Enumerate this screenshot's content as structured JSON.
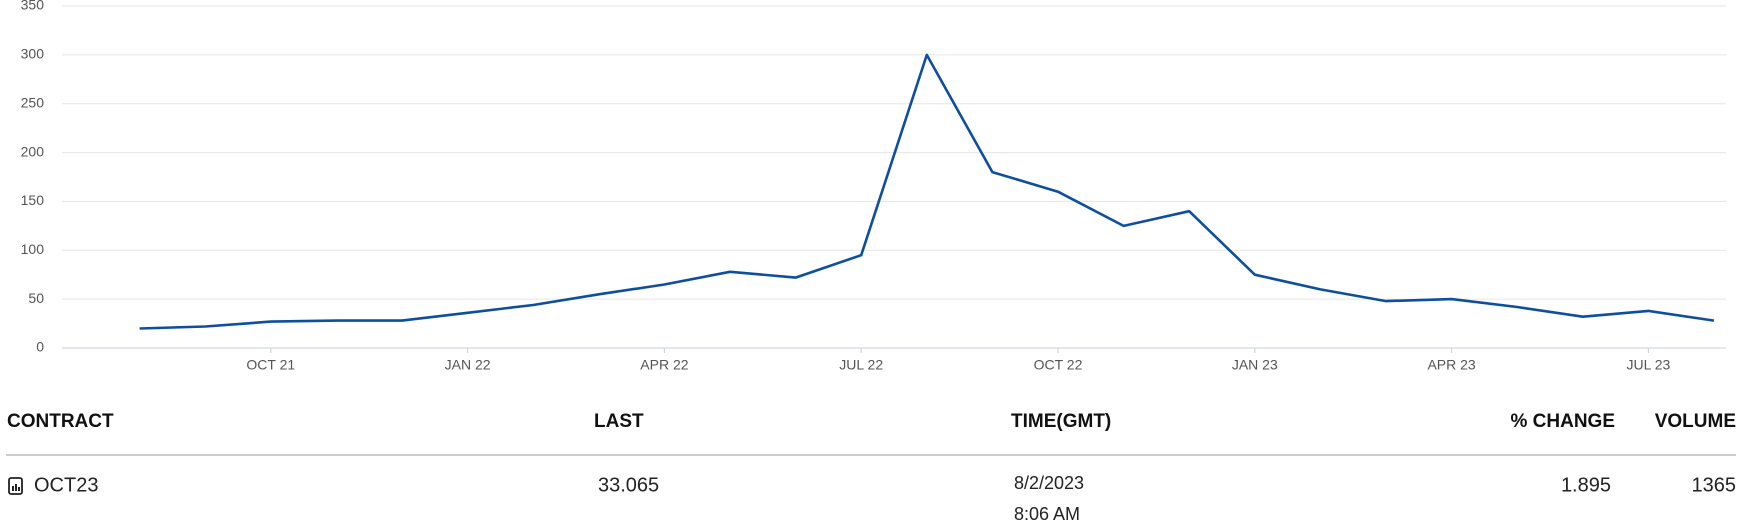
{
  "chart_data": {
    "type": "line",
    "x": [
      "2021-08",
      "2021-09",
      "2021-10",
      "2021-11",
      "2021-12",
      "2022-01",
      "2022-02",
      "2022-03",
      "2022-04",
      "2022-05",
      "2022-06",
      "2022-07",
      "2022-08",
      "2022-09",
      "2022-10",
      "2022-11",
      "2022-12",
      "2023-01",
      "2023-02",
      "2023-03",
      "2023-04",
      "2023-05",
      "2023-06",
      "2023-07",
      "2023-08"
    ],
    "values": [
      20,
      22,
      27,
      28,
      28,
      36,
      44,
      55,
      65,
      78,
      72,
      95,
      300,
      180,
      160,
      125,
      140,
      75,
      60,
      48,
      50,
      42,
      32,
      38,
      28
    ],
    "color": "#0d4f9e",
    "xlim": [
      "2021-07",
      "2023-08"
    ],
    "xticks": [
      {
        "value": "2021-10",
        "label": "OCT 21"
      },
      {
        "value": "2022-01",
        "label": "JAN 22"
      },
      {
        "value": "2022-04",
        "label": "APR 22"
      },
      {
        "value": "2022-07",
        "label": "JUL 22"
      },
      {
        "value": "2022-10",
        "label": "OCT 22"
      },
      {
        "value": "2023-01",
        "label": "JAN 23"
      },
      {
        "value": "2023-04",
        "label": "APR 23"
      },
      {
        "value": "2023-07",
        "label": "JUL 23"
      }
    ],
    "ylim": [
      0,
      350
    ],
    "yticks": [
      0,
      50,
      100,
      150,
      200,
      250,
      300,
      350
    ],
    "grid": true
  },
  "table": {
    "headers": [
      "CONTRACT",
      "LAST",
      "TIME(GMT)",
      "% CHANGE",
      "VOLUME"
    ],
    "rows": [
      [
        "OCT23",
        33.065,
        [
          "8/2/2023",
          "8:06 AM"
        ],
        1.895,
        1365
      ]
    ]
  }
}
